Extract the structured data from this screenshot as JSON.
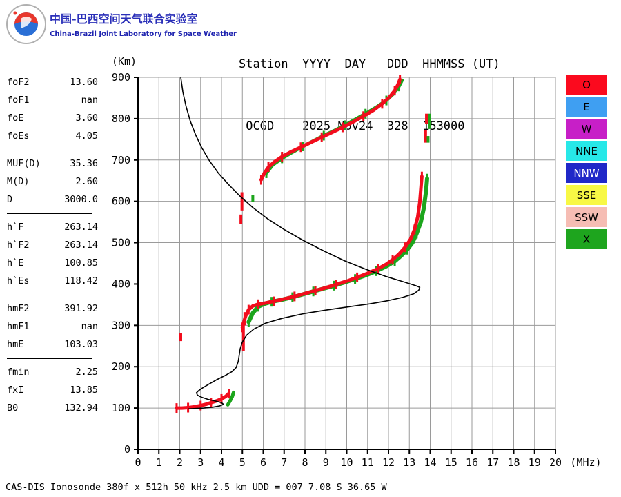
{
  "header": {
    "cn_title": "中国-巴西空间天气联合实验室",
    "en_title": "China-Brazil Joint Laboratory for Space Weather",
    "station_line1": "Station  YYYY  DAY   DDD  HHMMSS (UT)",
    "station_line2": " OCGD    2025 Nov24  328  153000"
  },
  "params": {
    "groups": [
      {
        "rows": [
          {
            "label": "foF2",
            "value": "13.60"
          },
          {
            "label": "foF1",
            "value": "nan"
          },
          {
            "label": "foE",
            "value": "3.60"
          },
          {
            "label": "foEs",
            "value": "4.05"
          }
        ]
      },
      {
        "rows": [
          {
            "label": "MUF(D)",
            "value": "35.36"
          },
          {
            "label": "M(D)",
            "value": "2.60"
          },
          {
            "label": "D",
            "value": "3000.0"
          }
        ]
      },
      {
        "rows": [
          {
            "label": "h`F",
            "value": "263.14"
          },
          {
            "label": "h`F2",
            "value": "263.14"
          },
          {
            "label": "h`E",
            "value": "100.85"
          },
          {
            "label": "h`Es",
            "value": "118.42"
          }
        ]
      },
      {
        "rows": [
          {
            "label": "hmF2",
            "value": "391.92"
          },
          {
            "label": "hmF1",
            "value": "nan"
          },
          {
            "label": "hmE",
            "value": "103.03"
          }
        ]
      },
      {
        "rows": [
          {
            "label": "fmin",
            "value": "2.25"
          },
          {
            "label": "fxI",
            "value": "13.85"
          },
          {
            "label": "B0",
            "value": "132.94"
          }
        ]
      }
    ]
  },
  "legend": {
    "items": [
      {
        "label": "O",
        "bg": "#fb0a1e",
        "fg": "#000000"
      },
      {
        "label": "E",
        "bg": "#3f9ff2",
        "fg": "#000000"
      },
      {
        "label": "W",
        "bg": "#c71fc7",
        "fg": "#000000"
      },
      {
        "label": "NNE",
        "bg": "#27e8e8",
        "fg": "#000000"
      },
      {
        "label": "NNW",
        "bg": "#2028c8",
        "fg": "#ffffff"
      },
      {
        "label": "SSE",
        "bg": "#f8f845",
        "fg": "#000000"
      },
      {
        "label": "SSW",
        "bg": "#f6bdb4",
        "fg": "#000000"
      },
      {
        "label": "X",
        "bg": "#1ea51e",
        "fg": "#000000"
      }
    ]
  },
  "footer": {
    "text": "CAS-DIS Ionosonde 380f x 512h 50 kHz 2.5 km UDD = 007 7.08 S 36.65 W"
  },
  "chart_data": {
    "type": "scatter",
    "title": "Ionogram OCGD 2025 Nov24 328 153000 UT",
    "xlabel": "(MHz)",
    "ylabel": "(Km)",
    "xlim": [
      0,
      20
    ],
    "ylim": [
      0,
      900
    ],
    "xticks": [
      0,
      1,
      2,
      3,
      4,
      5,
      6,
      7,
      8,
      9,
      10,
      11,
      12,
      13,
      14,
      15,
      16,
      17,
      18,
      19,
      20
    ],
    "yticks": [
      0,
      100,
      200,
      300,
      400,
      500,
      600,
      700,
      800,
      900
    ],
    "grid": true,
    "legend_position": "right-outside",
    "colors": {
      "o": "#f20d1d",
      "x": "#1ca51c",
      "profile": "#000000",
      "grid": "#9a9a9a",
      "axis": "#000000"
    },
    "series": [
      {
        "name": "X-mode Es trace",
        "color": "x",
        "width": 5,
        "fuzzy": false,
        "points": [
          [
            4.3,
            108
          ],
          [
            4.42,
            118
          ],
          [
            4.52,
            128
          ],
          [
            4.58,
            138
          ]
        ]
      },
      {
        "name": "O-mode Es trace",
        "color": "o",
        "width": 5,
        "fuzzy": true,
        "points": [
          [
            1.85,
            100
          ],
          [
            2.1,
            100
          ],
          [
            2.4,
            101
          ],
          [
            2.7,
            103
          ],
          [
            3.0,
            106
          ],
          [
            3.25,
            109
          ],
          [
            3.5,
            113
          ],
          [
            3.75,
            117
          ],
          [
            4.0,
            122
          ],
          [
            4.2,
            128
          ],
          [
            4.35,
            135
          ]
        ]
      },
      {
        "name": "X-mode F trace",
        "color": "x",
        "width": 6,
        "fuzzy": true,
        "points": [
          [
            5.3,
            308
          ],
          [
            5.5,
            330
          ],
          [
            5.75,
            345
          ],
          [
            6.05,
            352
          ],
          [
            6.4,
            357
          ],
          [
            6.9,
            362
          ],
          [
            7.4,
            368
          ],
          [
            7.9,
            375
          ],
          [
            8.4,
            382
          ],
          [
            8.9,
            389
          ],
          [
            9.4,
            396
          ],
          [
            9.9,
            404
          ],
          [
            10.4,
            412
          ],
          [
            10.9,
            421
          ],
          [
            11.4,
            431
          ],
          [
            11.9,
            443
          ],
          [
            12.3,
            455
          ],
          [
            12.6,
            468
          ],
          [
            12.9,
            483
          ],
          [
            13.15,
            500
          ],
          [
            13.35,
            522
          ],
          [
            13.55,
            550
          ],
          [
            13.7,
            585
          ],
          [
            13.8,
            625
          ],
          [
            13.85,
            655
          ]
        ]
      },
      {
        "name": "O-mode F trace",
        "color": "o",
        "width": 5,
        "fuzzy": true,
        "points": [
          [
            5.0,
            295
          ],
          [
            5.15,
            322
          ],
          [
            5.3,
            338
          ],
          [
            5.5,
            347
          ],
          [
            5.75,
            351
          ],
          [
            6.1,
            354
          ],
          [
            6.5,
            358
          ],
          [
            7.0,
            364
          ],
          [
            7.5,
            370
          ],
          [
            8.0,
            377
          ],
          [
            8.5,
            384
          ],
          [
            9.0,
            391
          ],
          [
            9.5,
            399
          ],
          [
            10.0,
            407
          ],
          [
            10.5,
            416
          ],
          [
            11.0,
            426
          ],
          [
            11.5,
            437
          ],
          [
            11.9,
            448
          ],
          [
            12.2,
            459
          ],
          [
            12.5,
            472
          ],
          [
            12.8,
            489
          ],
          [
            13.05,
            508
          ],
          [
            13.25,
            532
          ],
          [
            13.4,
            562
          ],
          [
            13.5,
            598
          ],
          [
            13.56,
            635
          ],
          [
            13.6,
            660
          ]
        ]
      },
      {
        "name": "X-mode 2nd hop trace",
        "color": "x",
        "width": 5,
        "fuzzy": true,
        "points": [
          [
            6.15,
            668
          ],
          [
            6.45,
            688
          ],
          [
            6.9,
            704
          ],
          [
            7.4,
            719
          ],
          [
            7.9,
            733
          ],
          [
            8.4,
            746
          ],
          [
            8.9,
            759
          ],
          [
            9.4,
            771
          ],
          [
            9.9,
            784
          ],
          [
            10.4,
            798
          ],
          [
            10.9,
            812
          ],
          [
            11.4,
            827
          ],
          [
            11.9,
            844
          ],
          [
            12.25,
            861
          ],
          [
            12.5,
            878
          ],
          [
            12.65,
            893
          ]
        ]
      },
      {
        "name": "O-mode 2nd hop trace",
        "color": "o",
        "width": 5,
        "fuzzy": true,
        "points": [
          [
            5.9,
            652
          ],
          [
            6.05,
            668
          ],
          [
            6.25,
            683
          ],
          [
            6.55,
            696
          ],
          [
            6.9,
            708
          ],
          [
            7.3,
            719
          ],
          [
            7.8,
            731
          ],
          [
            8.3,
            743
          ],
          [
            8.8,
            755
          ],
          [
            9.3,
            767
          ],
          [
            9.8,
            779
          ],
          [
            10.3,
            792
          ],
          [
            10.8,
            806
          ],
          [
            11.3,
            821
          ],
          [
            11.7,
            836
          ],
          [
            12.05,
            852
          ],
          [
            12.3,
            868
          ],
          [
            12.45,
            882
          ],
          [
            12.55,
            895
          ]
        ]
      }
    ],
    "segments": [
      {
        "color": "o",
        "f": 2.05,
        "h1": 262,
        "h2": 282
      },
      {
        "color": "o",
        "f": 4.93,
        "h1": 545,
        "h2": 568
      },
      {
        "color": "o",
        "f": 4.98,
        "h1": 578,
        "h2": 622
      },
      {
        "color": "o",
        "f": 5.05,
        "h1": 238,
        "h2": 300
      },
      {
        "color": "o",
        "f": 5.12,
        "h1": 300,
        "h2": 332
      },
      {
        "color": "x",
        "f": 5.5,
        "h1": 598,
        "h2": 616
      },
      {
        "color": "o",
        "f": 13.78,
        "h1": 742,
        "h2": 772
      },
      {
        "color": "o",
        "f": 13.82,
        "h1": 788,
        "h2": 812
      },
      {
        "color": "x",
        "f": 13.9,
        "h1": 742,
        "h2": 758
      },
      {
        "color": "x",
        "f": 13.95,
        "h1": 775,
        "h2": 812
      }
    ],
    "profile": {
      "name": "true-height electron density profile",
      "color": "profile",
      "width": 1.6,
      "points": [
        [
          2.05,
          900
        ],
        [
          2.15,
          865
        ],
        [
          2.3,
          830
        ],
        [
          2.5,
          795
        ],
        [
          2.75,
          762
        ],
        [
          3.05,
          730
        ],
        [
          3.4,
          700
        ],
        [
          3.85,
          668
        ],
        [
          4.35,
          640
        ],
        [
          4.9,
          612
        ],
        [
          5.5,
          585
        ],
        [
          6.2,
          558
        ],
        [
          7.0,
          532
        ],
        [
          7.9,
          506
        ],
        [
          8.9,
          480
        ],
        [
          9.9,
          456
        ],
        [
          10.9,
          436
        ],
        [
          11.9,
          418
        ],
        [
          12.8,
          404
        ],
        [
          13.3,
          396
        ],
        [
          13.5,
          392
        ],
        [
          13.45,
          385
        ],
        [
          13.2,
          376
        ],
        [
          12.7,
          368
        ],
        [
          12.0,
          360
        ],
        [
          11.1,
          352
        ],
        [
          10.1,
          345
        ],
        [
          9.0,
          337
        ],
        [
          7.9,
          328
        ],
        [
          6.9,
          317
        ],
        [
          6.1,
          305
        ],
        [
          5.55,
          291
        ],
        [
          5.2,
          276
        ],
        [
          5.0,
          260
        ],
        [
          4.9,
          244
        ],
        [
          4.85,
          228
        ],
        [
          4.8,
          212
        ],
        [
          4.7,
          198
        ],
        [
          4.5,
          188
        ],
        [
          4.15,
          178
        ],
        [
          3.75,
          168
        ],
        [
          3.4,
          158
        ],
        [
          3.1,
          149
        ],
        [
          2.9,
          142
        ],
        [
          2.8,
          137
        ],
        [
          2.85,
          131
        ],
        [
          3.05,
          126
        ],
        [
          3.35,
          121
        ],
        [
          3.7,
          117
        ],
        [
          4.0,
          113
        ],
        [
          4.1,
          109
        ],
        [
          3.9,
          105
        ],
        [
          3.55,
          102
        ],
        [
          3.15,
          100
        ],
        [
          2.75,
          99
        ],
        [
          2.4,
          98
        ]
      ]
    }
  }
}
